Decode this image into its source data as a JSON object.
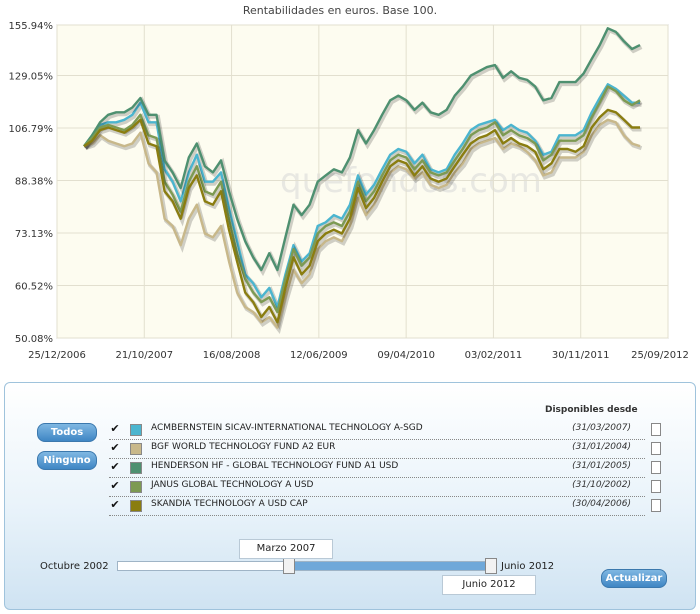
{
  "chart_data": {
    "type": "line",
    "title": "Rentabilidades en euros. Base 100.",
    "watermark": "quefondos.com",
    "x_ticks": [
      "25/12/2006",
      "21/10/2007",
      "16/08/2008",
      "12/06/2009",
      "09/04/2010",
      "03/02/2011",
      "30/11/2011",
      "25/09/2012"
    ],
    "y_ticks": [
      "155.94%",
      "129.05%",
      "106.79%",
      "88.38%",
      "73.13%",
      "60.52%",
      "50.08%"
    ],
    "ylim": [
      50.08,
      155.94
    ],
    "log_scale": true,
    "grid": true,
    "point_count": 70,
    "series": [
      {
        "name": "ACMBERNSTEIN SICAV-INTERNATIONAL TECHNOLOGY A-SGD",
        "color": "#4bb5cf",
        "values": [
          100,
          104,
          108,
          109,
          109,
          110,
          112,
          117,
          109,
          109,
          92,
          88,
          82,
          91,
          97,
          88,
          88,
          91,
          80,
          71,
          63,
          61,
          58,
          60,
          56,
          63,
          70,
          66,
          68,
          75,
          76,
          78,
          77,
          81,
          90,
          84,
          87,
          92,
          97,
          99,
          98,
          94,
          97,
          92,
          91,
          92,
          97,
          101,
          106,
          108,
          109,
          110,
          106,
          108,
          106,
          105,
          102,
          97,
          98,
          104,
          104,
          104,
          106,
          113,
          119,
          125,
          123,
          120,
          117,
          117
        ]
      },
      {
        "name": "BGF WORLD TECHNOLOGY FUND A2 EUR",
        "color": "#c8b88a",
        "values": [
          100,
          101,
          104,
          102,
          101,
          100,
          101,
          105,
          94,
          91,
          77,
          75,
          70,
          77,
          81,
          73,
          72,
          75,
          66,
          59,
          56,
          55,
          53,
          54,
          52,
          58,
          64,
          61,
          63,
          69,
          71,
          72,
          71,
          75,
          83,
          78,
          81,
          86,
          91,
          93,
          92,
          89,
          91,
          87,
          86,
          87,
          91,
          94,
          99,
          101,
          102,
          103,
          99,
          101,
          100,
          98,
          95,
          90,
          91,
          96,
          96,
          96,
          98,
          104,
          108,
          110,
          109,
          104,
          101,
          100
        ]
      },
      {
        "name": "HENDERSON HF - GLOBAL TECHNOLOGY FUND A1 USD",
        "color": "#4e9070",
        "values": [
          100,
          104,
          109,
          112,
          113,
          113,
          115,
          119,
          112,
          112,
          95,
          91,
          86,
          96,
          101,
          93,
          91,
          95,
          85,
          77,
          71,
          67,
          64,
          68,
          64,
          72,
          81,
          78,
          81,
          88,
          90,
          92,
          91,
          96,
          106,
          101,
          106,
          112,
          118,
          120,
          118,
          114,
          117,
          113,
          112,
          114,
          120,
          124,
          129,
          131,
          133,
          134,
          128,
          131,
          128,
          127,
          124,
          118,
          119,
          126,
          126,
          126,
          130,
          137,
          144,
          153,
          151,
          146,
          142,
          144
        ]
      },
      {
        "name": "JANUS GLOBAL TECHNOLOGY A USD",
        "color": "#7d9a52",
        "values": [
          100,
          103,
          107,
          108,
          107,
          106,
          108,
          112,
          104,
          103,
          88,
          84,
          79,
          88,
          93,
          85,
          84,
          88,
          77,
          68,
          62,
          59,
          57,
          58,
          55,
          62,
          69,
          65,
          67,
          73,
          75,
          76,
          75,
          79,
          88,
          82,
          85,
          90,
          95,
          97,
          96,
          92,
          95,
          91,
          90,
          91,
          95,
          99,
          104,
          106,
          107,
          109,
          104,
          106,
          104,
          103,
          101,
          95,
          97,
          102,
          102,
          102,
          104,
          111,
          117,
          124,
          122,
          118,
          116,
          118
        ]
      },
      {
        "name": "SKANDIA TECHNOLOGY A USD CAP",
        "color": "#8a7d10",
        "values": [
          100,
          102,
          106,
          107,
          106,
          105,
          107,
          110,
          101,
          100,
          85,
          82,
          77,
          86,
          90,
          82,
          81,
          85,
          74,
          66,
          59,
          57,
          54,
          56,
          53,
          60,
          67,
          63,
          65,
          71,
          73,
          74,
          73,
          77,
          86,
          80,
          83,
          88,
          93,
          95,
          94,
          90,
          93,
          89,
          88,
          89,
          93,
          97,
          101,
          103,
          104,
          106,
          101,
          103,
          101,
          100,
          98,
          92,
          94,
          99,
          99,
          98,
          100,
          107,
          111,
          114,
          113,
          110,
          107,
          107
        ]
      }
    ]
  },
  "panel": {
    "todos_label": "Todos",
    "ninguno_label": "Ninguno",
    "header_disponibles": "Disponibles desde",
    "funds": [
      {
        "name": "ACMBERNSTEIN SICAV-INTERNATIONAL TECHNOLOGY A-SGD",
        "date": "(31/03/2007)",
        "color": "#4bb5cf",
        "check": "✔"
      },
      {
        "name": "BGF WORLD TECHNOLOGY FUND A2 EUR",
        "date": "(31/01/2004)",
        "color": "#c8b88a",
        "check": "✔"
      },
      {
        "name": "HENDERSON HF - GLOBAL TECHNOLOGY FUND A1 USD",
        "date": "(31/01/2005)",
        "color": "#4e9070",
        "check": "✔"
      },
      {
        "name": "JANUS GLOBAL TECHNOLOGY A USD",
        "date": "(31/10/2002)",
        "color": "#7d9a52",
        "check": "✔"
      },
      {
        "name": "SKANDIA TECHNOLOGY A USD CAP",
        "date": "(30/04/2006)",
        "color": "#8a7d10",
        "check": "✔"
      }
    ],
    "range_min_label": "Octubre 2002",
    "range_max_label": "Junio 2012",
    "selected_start": "Marzo 2007",
    "selected_end": "Junio 2012",
    "actualizar_label": "Actualizar"
  }
}
